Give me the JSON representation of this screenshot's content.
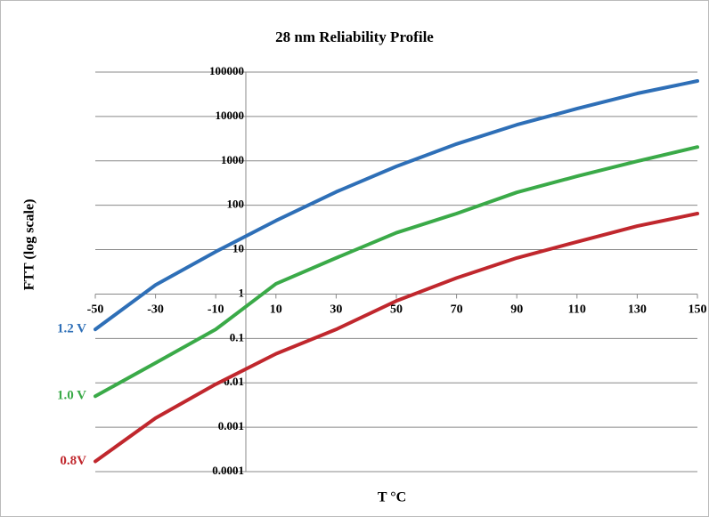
{
  "chart_data": {
    "type": "line",
    "title": "28 nm Reliability Profile",
    "x_label": "T °C",
    "y_label": "FTT (log scale)",
    "y_scale": "log",
    "grid": true,
    "x": [
      -50,
      -30,
      -10,
      10,
      30,
      50,
      70,
      90,
      110,
      130,
      150
    ],
    "xlim": [
      -50,
      150
    ],
    "xticks": [
      -50,
      -30,
      -10,
      10,
      30,
      50,
      70,
      90,
      110,
      130,
      150
    ],
    "ylim": [
      0.0001,
      100000
    ],
    "yticks": [
      0.0001,
      0.001,
      0.01,
      0.1,
      1,
      10,
      100,
      1000,
      10000,
      100000
    ],
    "series": [
      {
        "name": "1.2 V",
        "color": "#2e6fb7",
        "values": [
          0.16,
          1.6,
          9,
          45,
          200,
          750,
          2400,
          6500,
          15000,
          33000,
          63000
        ]
      },
      {
        "name": "1.0 V",
        "color": "#3aaa48",
        "values": [
          0.005,
          0.028,
          0.16,
          1.7,
          6.5,
          24,
          65,
          195,
          450,
          980,
          2050
        ]
      },
      {
        "name": "0.8V",
        "color": "#c0272d",
        "values": [
          0.00017,
          0.0016,
          0.0093,
          0.045,
          0.16,
          0.7,
          2.3,
          6.5,
          15,
          34,
          65
        ]
      }
    ]
  }
}
